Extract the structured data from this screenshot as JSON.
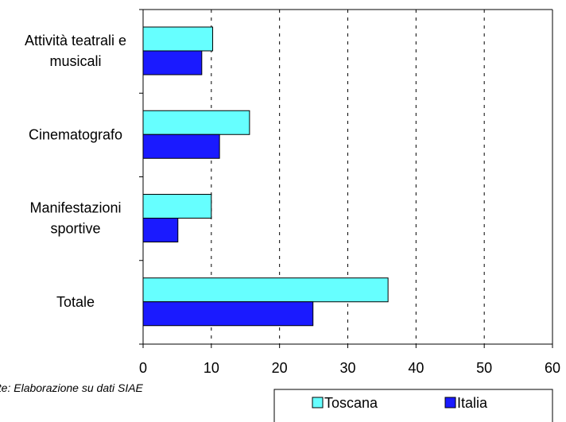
{
  "chart_data": {
    "type": "bar",
    "orientation": "horizontal",
    "categories": [
      [
        "Attività teatrali e",
        "musicali"
      ],
      [
        "Cinematografo"
      ],
      [
        "Manifestazioni",
        "sportive"
      ],
      [
        "Totale"
      ]
    ],
    "series": [
      {
        "name": "Toscana",
        "color": "#66ffff",
        "values": [
          10.2,
          15.6,
          10.0,
          35.9
        ]
      },
      {
        "name": "Italia",
        "color": "#1a1aff",
        "values": [
          8.6,
          11.2,
          5.1,
          24.9
        ]
      }
    ],
    "xlim": [
      0,
      60
    ],
    "xticks": [
      0,
      10,
      20,
      30,
      40,
      50,
      60
    ],
    "grid": "vertical dashed",
    "legend_position": "bottom-right"
  },
  "note": "nte: Elaborazione su dati SIAE"
}
